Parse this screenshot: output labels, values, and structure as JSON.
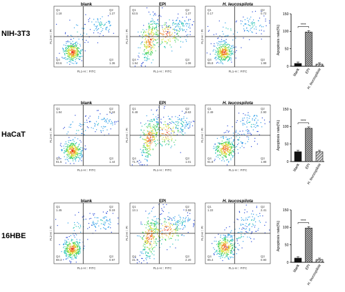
{
  "figure": {
    "samples": [
      "blank",
      "EPI",
      "H. leucospilota"
    ],
    "rows": [
      {
        "cell_line": "NIH-3T3",
        "panels": [
          {
            "q1": "1.18",
            "q2": "1.27",
            "q3": "1.36",
            "q4": "93.6",
            "pattern": "blank"
          },
          {
            "q1": "63.5",
            "q2": "1.27",
            "q3": "1.08",
            "q4": "1.54",
            "pattern": "epi"
          },
          {
            "q1": "0.17",
            "q2": "0.72",
            "q3": "1.98",
            "q4": "95.8",
            "pattern": "blank"
          }
        ]
      },
      {
        "cell_line": "HaCaT",
        "panels": [
          {
            "q1": "1.84",
            "q2": "5.18",
            "q3": "1.44",
            "q4": "91.5",
            "pattern": "blank"
          },
          {
            "q1": "6.48",
            "q2": "8.63",
            "q3": "1.01",
            "q4": "71.7",
            "pattern": "epi"
          },
          {
            "q1": "2.49",
            "q2": "2.90",
            "q3": "1.88",
            "q4": "91.8",
            "pattern": "hleu"
          }
        ]
      },
      {
        "cell_line": "16HBE",
        "panels": [
          {
            "q1": "1.45",
            "q2": "9.19",
            "q3": "0.97",
            "q4": "88.3",
            "pattern": "blank"
          },
          {
            "q1": "13.1",
            "q2": "3.59",
            "q3": "2.20",
            "q4": "31.7",
            "pattern": "epi"
          },
          {
            "q1": "1.22",
            "q2": "2.41",
            "q3": "0.90",
            "q4": "85.4",
            "pattern": "hleu"
          }
        ]
      }
    ],
    "axis_labels": {
      "x": "FL1-H :: FITC",
      "y": "FL2-H :: PI"
    },
    "bar_colors": {
      "blank": "#111111",
      "EPI": "#9a9a9a",
      "hleu": "#6e6e6e"
    }
  },
  "chart_data": [
    {
      "type": "bar",
      "panel": "NIH-3T3",
      "categories": [
        "blank",
        "EPI",
        "H. leucospilota"
      ],
      "values": [
        8,
        98,
        6
      ],
      "ylabel": "Apoptosis rate(%)",
      "ylim": [
        0,
        150
      ],
      "yticks": [
        0,
        50,
        100,
        150
      ],
      "significance": "****"
    },
    {
      "type": "bar",
      "panel": "HaCaT",
      "categories": [
        "blank",
        "EPI",
        "H. leucospilota"
      ],
      "values": [
        28,
        95,
        28
      ],
      "ylabel": "Apoptosis rate(%)",
      "ylim": [
        0,
        150
      ],
      "yticks": [
        0,
        50,
        100,
        150
      ],
      "significance": "****"
    },
    {
      "type": "bar",
      "panel": "16HBE",
      "categories": [
        "blank",
        "EPI",
        "H. leucospilota"
      ],
      "values": [
        12,
        98,
        8
      ],
      "ylabel": "Apoptosis rate(%)",
      "ylim": [
        0,
        150
      ],
      "yticks": [
        0,
        50,
        100,
        150
      ],
      "significance": "****"
    }
  ]
}
